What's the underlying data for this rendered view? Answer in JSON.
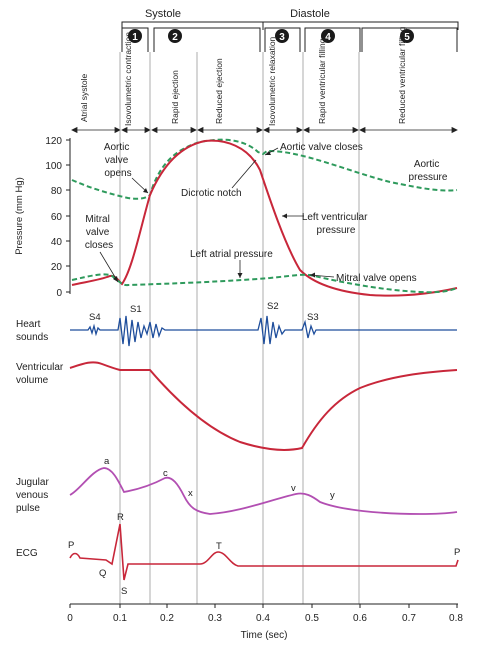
{
  "header": {
    "systole": "Systole",
    "diastole": "Diastole",
    "phase_numbers": [
      "1",
      "2",
      "3",
      "4",
      "5"
    ],
    "phases": [
      "Atrial systole",
      "Isovolumetric contraction",
      "Rapid ejection",
      "Reduced ejection",
      "Isovolumetric relaxation",
      "Rapid ventricular filling",
      "Reduced ventricular filling"
    ]
  },
  "pressure_panel": {
    "ylabel": "Pressure (mm Hg)",
    "yticks": [
      "120",
      "100",
      "80",
      "60",
      "40",
      "20",
      "0"
    ],
    "annotations": {
      "aortic_valve_opens": [
        "Aortic",
        "valve",
        "opens"
      ],
      "aortic_valve_closes": "Aortic valve closes",
      "aortic_pressure": [
        "Aortic",
        "pressure"
      ],
      "dicrotic_notch": "Dicrotic notch",
      "mitral_valve_closes": [
        "Mitral",
        "valve",
        "closes"
      ],
      "left_ventricular_pressure": [
        "Left ventricular",
        "pressure"
      ],
      "left_atrial_pressure": "Left atrial pressure",
      "mitral_valve_opens": "Mitral valve opens"
    }
  },
  "heart_sounds": {
    "label": [
      "Heart",
      "sounds"
    ],
    "marks": [
      "S4",
      "S1",
      "S2",
      "S3"
    ]
  },
  "ventricular_volume": {
    "label": [
      "Ventricular",
      "volume"
    ]
  },
  "jugular": {
    "label": [
      "Jugular",
      "venous",
      "pulse"
    ],
    "marks": [
      "a",
      "c",
      "x",
      "v",
      "y"
    ]
  },
  "ecg": {
    "label": "ECG",
    "marks": [
      "P",
      "R",
      "Q",
      "S",
      "T",
      "P"
    ]
  },
  "x_axis": {
    "label": "Time (sec)",
    "ticks": [
      "0",
      "0.1",
      "0.2",
      "0.3",
      "0.4",
      "0.5",
      "0.6",
      "0.7",
      "0.8"
    ]
  },
  "colors": {
    "red": "#c8273a",
    "green": "#2e9a5c",
    "blue": "#1f4e9c",
    "magenta": "#b24fb2",
    "badge": "#1a1a1a"
  }
}
